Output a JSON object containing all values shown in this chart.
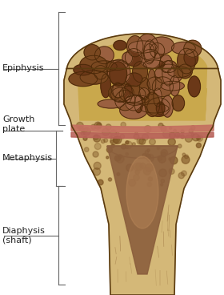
{
  "background_color": "#ffffff",
  "bone_compact_color": "#d4b878",
  "bone_trabecular_color": "#c8a85a",
  "spongy_fill_color": "#c8a855",
  "marrow_cavity_color": "#8b5e3c",
  "marrow_cavity_color2": "#c49060",
  "growth_plate_color1": "#c47060",
  "growth_plate_color2": "#b86058",
  "outline_color": "#5a3a10",
  "label_color": "#222222",
  "bracket_color": "#666666",
  "hole_colors": [
    "#7a4820",
    "#8b5530",
    "#6b3818",
    "#9a6040"
  ],
  "labels": {
    "epiphysis": "Epiphysis",
    "growth_plate": "Growth\nplate",
    "metaphysis": "Metaphysis",
    "diaphysis": "Diaphysis\n(shaft)"
  },
  "font_size": 8.0,
  "fig_width": 2.8,
  "fig_height": 3.68
}
